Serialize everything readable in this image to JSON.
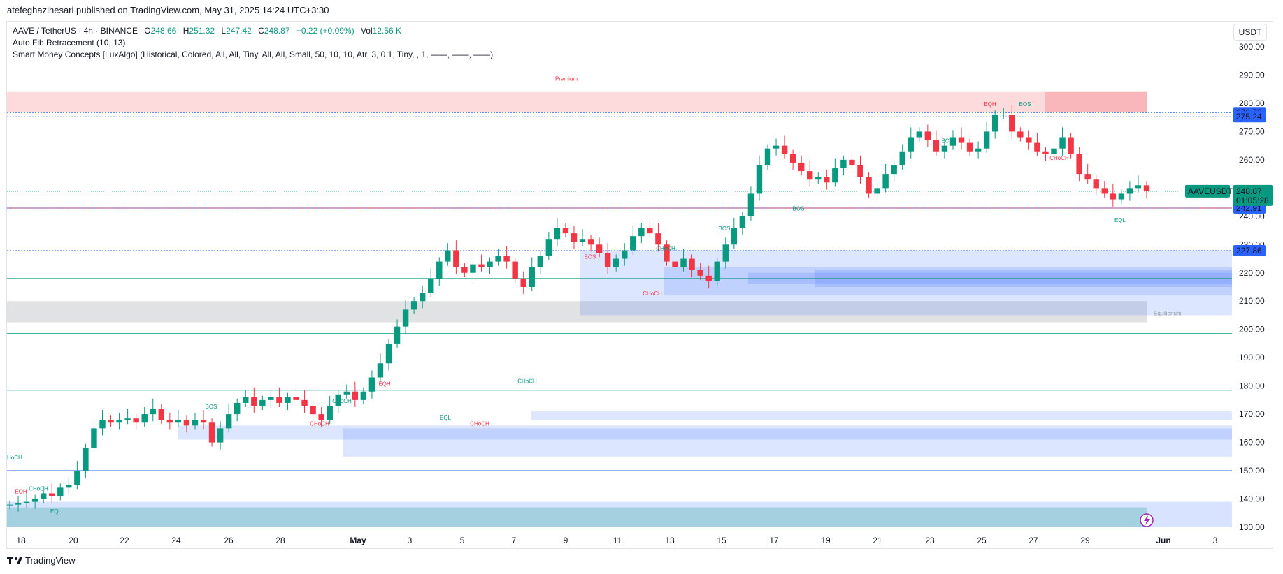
{
  "header": {
    "published": "atefeghazihesari published on TradingView.com, May 31, 2025 14:24 UTC+3:30"
  },
  "legend": {
    "symbol": "AAVE / TetherUS · 4h · BINANCE",
    "open_label": "O",
    "open": "248.66",
    "high_label": "H",
    "high": "251.32",
    "low_label": "L",
    "low": "247.42",
    "close_label": "C",
    "close": "248.87",
    "change": "+0.22 (+0.09%)",
    "vol_label": "Vol",
    "vol": "12.56 K",
    "indicator1": "Auto Fib Retracement (10, 13)",
    "indicator2": "Smart Money Concepts [LuxAlgo] (Historical, Colored, All, All, Tiny, All, All, Small, 50, 10, 10, Atr, 3, 0.1, Tiny, , 1, ——, ——, ——)"
  },
  "currency": "USDT",
  "footer": {
    "brand": "TradingView"
  },
  "colors": {
    "up": "#089981",
    "down": "#f23645",
    "blue": "#2962ff",
    "premium": "#f23645"
  },
  "chart_data": {
    "type": "candlestick",
    "ylim": [
      130,
      300
    ],
    "y_ticks": [
      "300.00",
      "290.00",
      "280.00",
      "270.00",
      "260.00",
      "250.00",
      "240.00",
      "230.00",
      "220.00",
      "210.00",
      "200.00",
      "190.00",
      "180.00",
      "170.00",
      "160.00",
      "150.00",
      "140.00",
      "130.00"
    ],
    "x_ticks": [
      "18",
      "20",
      "22",
      "24",
      "26",
      "28",
      "May",
      "3",
      "5",
      "7",
      "9",
      "11",
      "13",
      "15",
      "17",
      "19",
      "21",
      "23",
      "25",
      "27",
      "29",
      "Jun",
      "3"
    ],
    "price_labels": [
      {
        "value": 276.72,
        "text": "276.72",
        "color": "#2962ff"
      },
      {
        "value": 275.24,
        "text": "275.24",
        "color": "#2962ff"
      },
      {
        "value": 242.91,
        "text": "242.91",
        "color": "#2962ff"
      },
      {
        "value": 227.86,
        "text": "227.86",
        "color": "#2962ff"
      }
    ],
    "last_price": {
      "symbol": "AAVEUSDT",
      "value": 248.87,
      "text": "248.87",
      "countdown": "01:05:28"
    },
    "annotations": {
      "premium": "Premium",
      "equilibrium": "Equilibrium",
      "hoch": "HoCH",
      "labels": [
        {
          "t": "EQH",
          "c": "down"
        },
        {
          "t": "CHoCH",
          "c": "up"
        },
        {
          "t": "EQL",
          "c": "up"
        },
        {
          "t": "BOS",
          "c": "up"
        },
        {
          "t": "CHoCH",
          "c": "down"
        },
        {
          "t": "EQH",
          "c": "down"
        },
        {
          "t": "CHoCH",
          "c": "up"
        },
        {
          "t": "EQL",
          "c": "up"
        },
        {
          "t": "CHoCH",
          "c": "down"
        },
        {
          "t": "CHoCH",
          "c": "up"
        },
        {
          "t": "BOS",
          "c": "down"
        },
        {
          "t": "CHoCH",
          "c": "down"
        },
        {
          "t": "CHoCH",
          "c": "up"
        },
        {
          "t": "BOS",
          "c": "up"
        },
        {
          "t": "BOS",
          "c": "up"
        },
        {
          "t": "BOS",
          "c": "up"
        },
        {
          "t": "EQH",
          "c": "down"
        },
        {
          "t": "BOS",
          "c": "up"
        },
        {
          "t": "CHoCH",
          "c": "down"
        },
        {
          "t": "EQL",
          "c": "up"
        }
      ]
    },
    "price_path": [
      [
        0,
        138
      ],
      [
        5,
        138.5
      ],
      [
        10,
        139
      ],
      [
        15,
        140
      ],
      [
        20,
        142
      ],
      [
        25,
        141
      ],
      [
        30,
        144
      ],
      [
        35,
        145
      ],
      [
        40,
        150
      ],
      [
        45,
        158
      ],
      [
        50,
        165
      ],
      [
        55,
        168
      ],
      [
        60,
        167
      ],
      [
        65,
        168
      ],
      [
        70,
        168.5
      ],
      [
        75,
        167
      ],
      [
        80,
        170
      ],
      [
        85,
        172
      ],
      [
        90,
        168
      ],
      [
        95,
        167
      ],
      [
        100,
        168
      ],
      [
        105,
        166
      ],
      [
        110,
        168
      ],
      [
        115,
        167
      ],
      [
        120,
        160
      ],
      [
        125,
        165
      ],
      [
        130,
        170
      ],
      [
        135,
        174
      ],
      [
        140,
        176
      ],
      [
        145,
        173
      ],
      [
        150,
        175
      ],
      [
        155,
        176
      ],
      [
        160,
        174
      ],
      [
        165,
        176
      ],
      [
        170,
        175
      ],
      [
        175,
        173
      ],
      [
        180,
        170
      ],
      [
        185,
        168
      ],
      [
        190,
        173
      ],
      [
        195,
        177
      ],
      [
        200,
        178
      ],
      [
        205,
        175
      ],
      [
        210,
        178
      ],
      [
        215,
        183
      ],
      [
        220,
        188
      ],
      [
        225,
        195
      ],
      [
        230,
        201
      ],
      [
        235,
        207
      ],
      [
        240,
        210
      ],
      [
        245,
        213
      ],
      [
        250,
        218
      ],
      [
        255,
        224
      ],
      [
        260,
        228
      ],
      [
        265,
        222
      ],
      [
        270,
        220
      ],
      [
        275,
        223
      ],
      [
        280,
        222
      ],
      [
        285,
        224
      ],
      [
        290,
        226
      ],
      [
        295,
        224
      ],
      [
        300,
        218
      ],
      [
        305,
        215
      ],
      [
        310,
        222
      ],
      [
        315,
        226
      ],
      [
        320,
        232
      ],
      [
        325,
        236
      ],
      [
        330,
        234
      ],
      [
        335,
        231
      ],
      [
        340,
        232
      ],
      [
        345,
        230
      ],
      [
        350,
        227
      ],
      [
        355,
        222
      ],
      [
        360,
        225
      ],
      [
        365,
        228
      ],
      [
        370,
        233
      ],
      [
        375,
        236
      ],
      [
        380,
        234
      ],
      [
        385,
        230
      ],
      [
        390,
        224
      ],
      [
        395,
        222
      ],
      [
        400,
        225
      ],
      [
        405,
        221
      ],
      [
        410,
        219
      ],
      [
        415,
        217
      ],
      [
        420,
        224
      ],
      [
        425,
        230
      ],
      [
        430,
        236
      ],
      [
        435,
        240
      ],
      [
        440,
        248
      ],
      [
        445,
        258
      ],
      [
        450,
        264
      ],
      [
        455,
        265
      ],
      [
        460,
        262
      ],
      [
        465,
        259
      ],
      [
        470,
        256
      ],
      [
        475,
        253
      ],
      [
        480,
        254
      ],
      [
        485,
        252
      ],
      [
        490,
        257
      ],
      [
        495,
        260
      ],
      [
        500,
        258
      ],
      [
        505,
        254
      ],
      [
        510,
        248
      ],
      [
        515,
        250
      ],
      [
        520,
        255
      ],
      [
        525,
        258
      ],
      [
        530,
        263
      ],
      [
        535,
        268
      ],
      [
        540,
        270
      ],
      [
        545,
        267
      ],
      [
        550,
        263
      ],
      [
        555,
        265
      ],
      [
        560,
        268
      ],
      [
        565,
        266
      ],
      [
        570,
        263
      ],
      [
        575,
        264
      ],
      [
        580,
        270
      ],
      [
        585,
        276
      ],
      [
        590,
        276
      ],
      [
        595,
        270
      ],
      [
        600,
        268
      ],
      [
        605,
        266
      ],
      [
        610,
        263
      ],
      [
        615,
        262
      ],
      [
        620,
        264
      ],
      [
        625,
        268
      ],
      [
        630,
        262
      ],
      [
        635,
        255
      ],
      [
        640,
        253
      ],
      [
        645,
        250
      ],
      [
        650,
        248
      ],
      [
        655,
        246
      ],
      [
        660,
        248
      ],
      [
        665,
        250
      ],
      [
        670,
        251
      ],
      [
        675,
        248.87
      ]
    ]
  }
}
